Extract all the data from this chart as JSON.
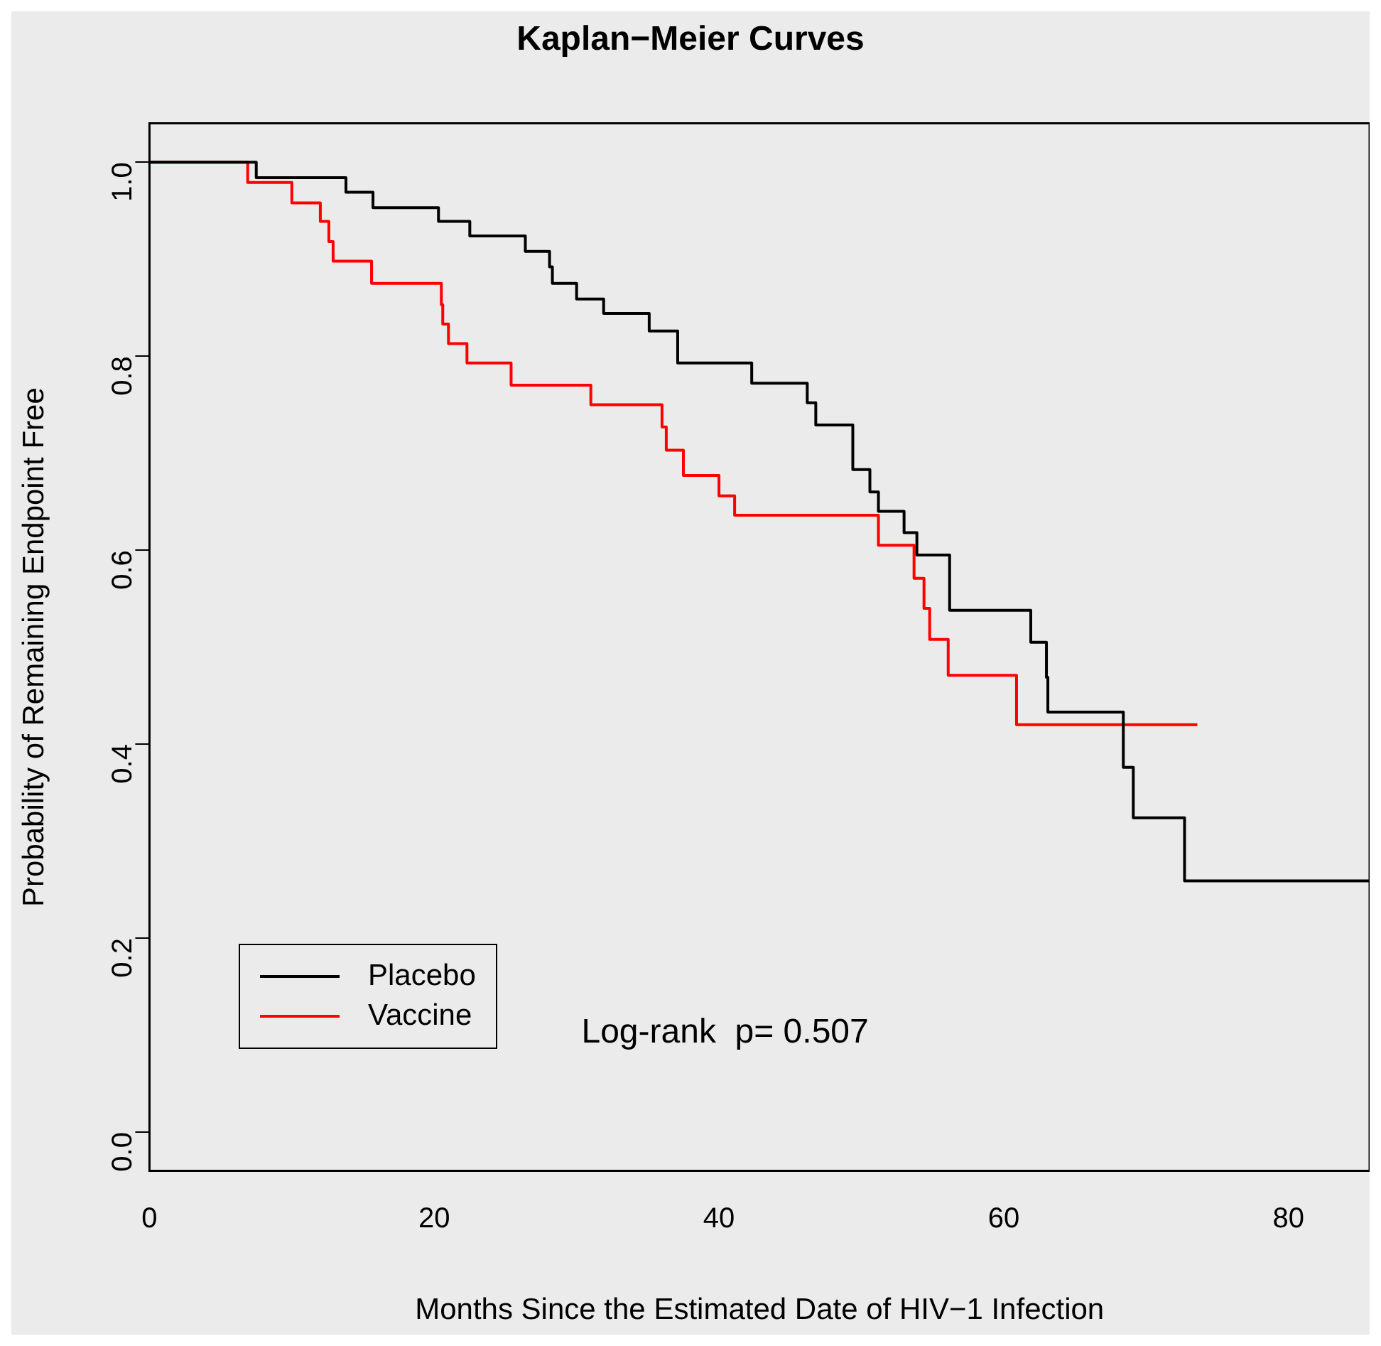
{
  "chart_data": {
    "type": "step",
    "title": "Kaplan−Meier Curves",
    "xlabel": "Months Since the Estimated Date of HIV−1 Infection",
    "ylabel": "Probability of Remaining Endpoint Free",
    "xlim": [
      0,
      85.7
    ],
    "xticks": [
      0,
      20,
      40,
      60,
      80
    ],
    "ylim": [
      -0.04,
      1.04
    ],
    "yticks": [
      {
        "value": 0,
        "label": "0.0"
      },
      0.2,
      0.4,
      0.6,
      0.8,
      {
        "value": 1,
        "label": "1.0"
      }
    ],
    "grid": false,
    "legend": "bottom left",
    "line_style": "solid",
    "marker": "none",
    "annotations": [
      "Log-rank  p= 0.507"
    ],
    "series": [
      {
        "name": "Placebo",
        "color": "#000000",
        "x": [
          0,
          7.5,
          13.8,
          15.7,
          20.3,
          22.5,
          26.4,
          28.1,
          28.3,
          30.0,
          31.9,
          35.1,
          37.1,
          42.3,
          46.2,
          46.8,
          49.4,
          50.6,
          51.2,
          53.0,
          53.9,
          56.2,
          61.9,
          63.0,
          63.1,
          68.4,
          69.1,
          72.7,
          85.7
        ],
        "values": [
          1,
          0.984,
          0.969,
          0.953,
          0.939,
          0.924,
          0.908,
          0.892,
          0.875,
          0.859,
          0.844,
          0.826,
          0.793,
          0.772,
          0.752,
          0.729,
          0.683,
          0.66,
          0.64,
          0.618,
          0.595,
          0.538,
          0.505,
          0.469,
          0.433,
          0.376,
          0.324,
          0.259,
          0.259
        ]
      },
      {
        "name": "Vaccine",
        "color": "#ff0000",
        "x": [
          0,
          6.9,
          10.0,
          12.0,
          12.6,
          12.9,
          15.6,
          20.5,
          20.6,
          21.0,
          22.3,
          25.4,
          31.0,
          36.0,
          36.3,
          37.5,
          40.0,
          41.1,
          51.2,
          53.7,
          54.4,
          54.8,
          56.1,
          60.9,
          73.6
        ],
        "values": [
          1,
          0.979,
          0.958,
          0.939,
          0.918,
          0.898,
          0.875,
          0.853,
          0.833,
          0.813,
          0.793,
          0.77,
          0.75,
          0.727,
          0.703,
          0.677,
          0.656,
          0.636,
          0.605,
          0.571,
          0.54,
          0.508,
          0.471,
          0.42,
          0.42
        ]
      }
    ]
  }
}
